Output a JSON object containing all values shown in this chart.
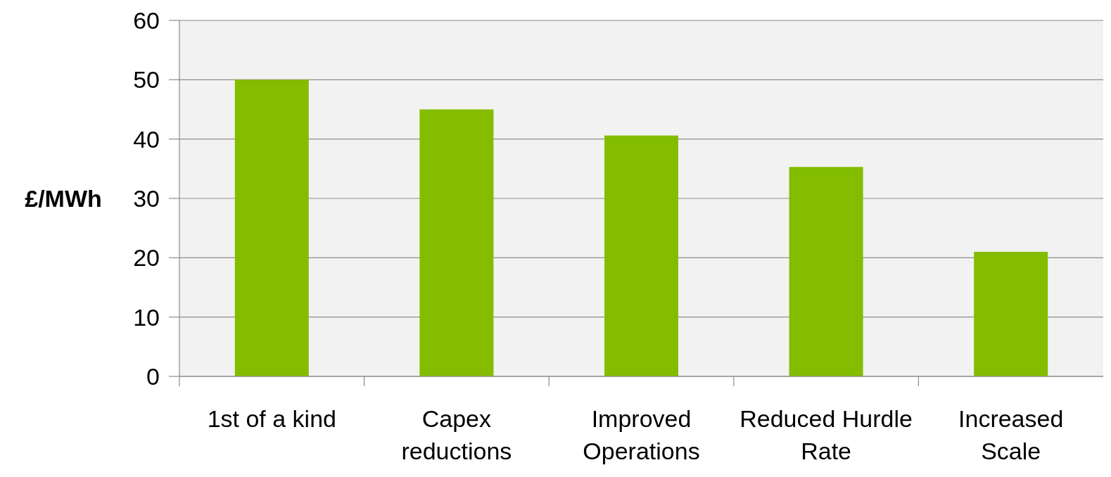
{
  "chart_data": {
    "type": "bar",
    "ylabel": "£/MWh",
    "categories": [
      "1st of a kind",
      "Capex reductions",
      "Improved Operations",
      "Reduced Hurdle Rate",
      "Increased Scale"
    ],
    "values": [
      50,
      45,
      40.6,
      35.3,
      21
    ],
    "color": "#84bd00",
    "ylim": [
      0,
      60
    ],
    "yticks": [
      0,
      10,
      20,
      30,
      40,
      50,
      60
    ],
    "grid": "y"
  }
}
